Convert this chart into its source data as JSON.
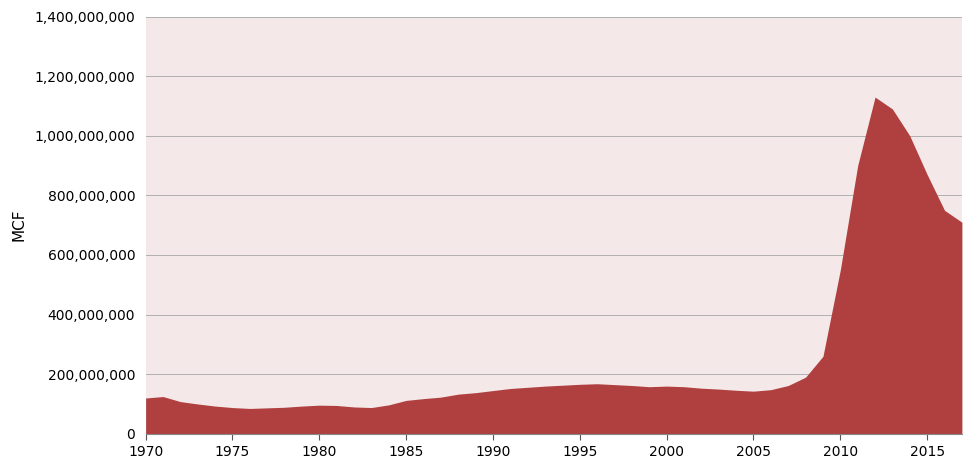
{
  "ylabel": "MCF",
  "xlim": [
    1970,
    2017
  ],
  "ylim": [
    0,
    1400000000
  ],
  "yticks": [
    0,
    200000000,
    400000000,
    600000000,
    800000000,
    1000000000,
    1200000000,
    1400000000
  ],
  "xticks": [
    1970,
    1975,
    1980,
    1985,
    1990,
    1995,
    2000,
    2005,
    2010,
    2015
  ],
  "fill_color": "#b04040",
  "bg_color": "#f5e8e8",
  "fig_bg_color": "#ffffff",
  "years": [
    1970,
    1971,
    1972,
    1973,
    1974,
    1975,
    1976,
    1977,
    1978,
    1979,
    1980,
    1981,
    1982,
    1983,
    1984,
    1985,
    1986,
    1987,
    1988,
    1989,
    1990,
    1991,
    1992,
    1993,
    1994,
    1995,
    1996,
    1997,
    1998,
    1999,
    2000,
    2001,
    2002,
    2003,
    2004,
    2005,
    2006,
    2007,
    2008,
    2009,
    2010,
    2011,
    2012,
    2013,
    2014,
    2015,
    2016,
    2017
  ],
  "values": [
    120000000,
    125000000,
    108000000,
    100000000,
    93000000,
    88000000,
    85000000,
    87000000,
    89000000,
    93000000,
    96000000,
    95000000,
    90000000,
    88000000,
    97000000,
    112000000,
    118000000,
    123000000,
    133000000,
    138000000,
    145000000,
    152000000,
    156000000,
    160000000,
    163000000,
    166000000,
    168000000,
    165000000,
    162000000,
    158000000,
    160000000,
    158000000,
    153000000,
    150000000,
    146000000,
    143000000,
    148000000,
    162000000,
    190000000,
    260000000,
    550000000,
    900000000,
    1130000000,
    1090000000,
    1000000000,
    870000000,
    750000000,
    710000000
  ]
}
